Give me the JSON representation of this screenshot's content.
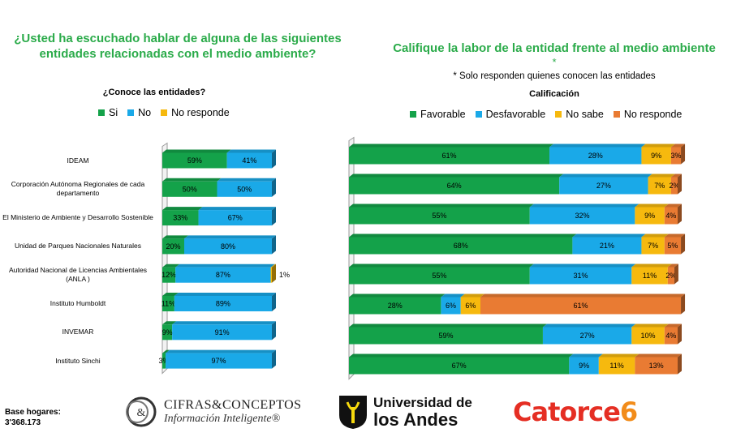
{
  "left": {
    "title": "¿Usted ha escuchado hablar de alguna de las siguientes entidades relacionadas con el medio ambiente?",
    "subtitle": "¿Conoce las entidades?"
  },
  "right": {
    "title": "Califique la labor de la entidad frente al medio ambiente",
    "star": "*",
    "note": "* Solo responden  quienes conocen las entidades",
    "subtitle": "Calificación"
  },
  "colors": {
    "green": "#14a24a",
    "blue": "#1aa9e8",
    "yellow": "#f6b90e",
    "orange": "#e97b33",
    "title_green": "#2bab4a"
  },
  "chart_data": [
    {
      "type": "bar",
      "orientation": "horizontal",
      "stacked": true,
      "title": "¿Conoce las entidades?",
      "categories": [
        "IDEAM",
        "Corporación Autónoma Regionales de cada departamento",
        "El Ministerio de Ambiente y Desarrollo Sostenible",
        "Unidad de Parques Nacionales Naturales",
        "Autoridad Nacional de Licencias Ambientales  (ANLA )",
        "Instituto  Humboldt",
        "INVEMAR",
        "Instituto Sinchi"
      ],
      "series": [
        {
          "name": "Si",
          "color": "#14a24a",
          "values": [
            59,
            50,
            33,
            20,
            12,
            11,
            9,
            3
          ]
        },
        {
          "name": "No",
          "color": "#1aa9e8",
          "values": [
            41,
            50,
            67,
            80,
            87,
            89,
            91,
            97
          ]
        },
        {
          "name": "No responde",
          "color": "#f6b90e",
          "values": [
            0,
            0,
            0,
            0,
            1,
            0,
            0,
            0
          ]
        }
      ],
      "unit": "%",
      "legend": "top"
    },
    {
      "type": "bar",
      "orientation": "horizontal",
      "stacked": true,
      "title": "Calificación",
      "categories": [
        "IDEAM",
        "Corporación Autónoma Regionales de cada departamento",
        "El Ministerio de Ambiente y Desarrollo Sostenible",
        "Unidad de Parques Nacionales Naturales",
        "Autoridad Nacional de Licencias Ambientales  (ANLA )",
        "Instituto  Humboldt",
        "INVEMAR",
        "Instituto Sinchi"
      ],
      "series": [
        {
          "name": "Favorable",
          "color": "#14a24a",
          "values": [
            61,
            64,
            55,
            68,
            55,
            28,
            59,
            67
          ]
        },
        {
          "name": "Desfavorable",
          "color": "#1aa9e8",
          "values": [
            28,
            27,
            32,
            21,
            31,
            6,
            27,
            9
          ]
        },
        {
          "name": "No sabe",
          "color": "#f6b90e",
          "values": [
            9,
            7,
            9,
            7,
            11,
            6,
            10,
            11
          ]
        },
        {
          "name": "No responde",
          "color": "#e97b33",
          "values": [
            3,
            2,
            4,
            5,
            2,
            61,
            4,
            13
          ]
        }
      ],
      "unit": "%",
      "legend": "top"
    }
  ],
  "footer": {
    "base_label": "Base hogares:",
    "base_value": "3'368.173",
    "logo1_line1": "CIFRAS&CONCEPTOS",
    "logo1_line2": "Información Inteligente®",
    "logo1_mark": "&",
    "logo2_line1": "Universidad de",
    "logo2_line2": "los Andes",
    "logo3_main": "Catorce",
    "logo3_num": "6"
  }
}
